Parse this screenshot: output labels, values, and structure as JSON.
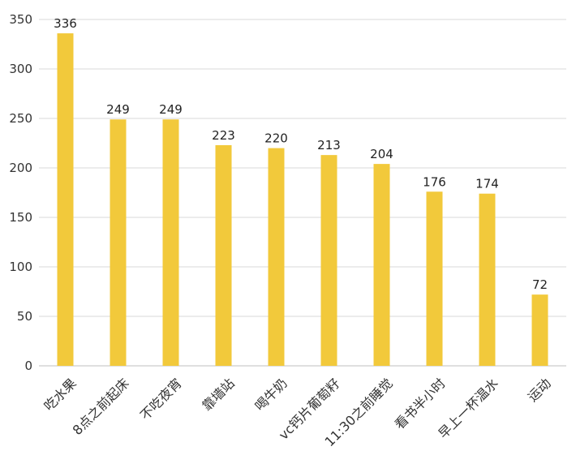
{
  "chart_data": {
    "type": "bar",
    "categories": [
      "吃水果",
      "8点之前起床",
      "不吃夜宵",
      "靠墙站",
      "喝牛奶",
      "vc钙片葡萄籽",
      "11:30之前睡觉",
      "看书半小时",
      "早上一杯温水",
      "运动"
    ],
    "values": [
      336,
      249,
      249,
      223,
      220,
      213,
      204,
      176,
      174,
      72
    ],
    "ylim": [
      0,
      350
    ],
    "yticks": [
      0,
      50,
      100,
      150,
      200,
      250,
      300,
      350
    ],
    "grid": true,
    "legend": "none",
    "data_labels": true,
    "x_label_rotation": -45,
    "colors": {
      "bar": "#F2C93B",
      "grid": "#D9D9D9",
      "axis": "#BFBFBF",
      "text": "#333333"
    }
  }
}
